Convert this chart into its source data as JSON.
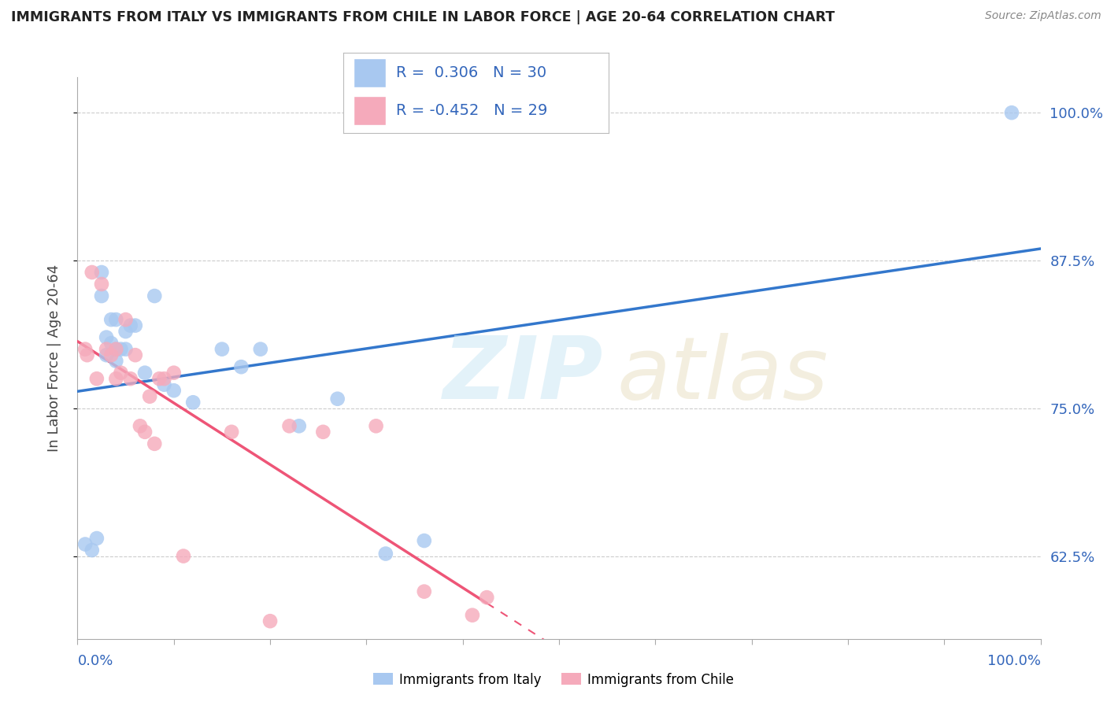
{
  "title": "IMMIGRANTS FROM ITALY VS IMMIGRANTS FROM CHILE IN LABOR FORCE | AGE 20-64 CORRELATION CHART",
  "source": "Source: ZipAtlas.com",
  "ylabel": "In Labor Force | Age 20-64",
  "ytick_values": [
    0.625,
    0.75,
    0.875,
    1.0
  ],
  "ytick_labels": [
    "62.5%",
    "75.0%",
    "87.5%",
    "100.0%"
  ],
  "xlim": [
    0.0,
    1.0
  ],
  "ylim": [
    0.555,
    1.03
  ],
  "italy_color": "#a8c8f0",
  "chile_color": "#f5aabb",
  "italy_line_color": "#3377cc",
  "chile_line_color": "#ee5577",
  "legend_text_color": "#3366bb",
  "legend_R_italy": "0.306",
  "legend_N_italy": "30",
  "legend_R_chile": "-0.452",
  "legend_N_chile": "29",
  "xtick_positions": [
    0.0,
    0.1,
    0.2,
    0.3,
    0.4,
    0.5,
    0.6,
    0.7,
    0.8,
    0.9,
    1.0
  ],
  "italy_x": [
    0.008,
    0.015,
    0.02,
    0.025,
    0.025,
    0.03,
    0.03,
    0.035,
    0.035,
    0.04,
    0.04,
    0.04,
    0.045,
    0.05,
    0.05,
    0.055,
    0.06,
    0.07,
    0.08,
    0.09,
    0.1,
    0.12,
    0.15,
    0.17,
    0.19,
    0.23,
    0.27,
    0.32,
    0.36,
    0.97
  ],
  "italy_y": [
    0.635,
    0.63,
    0.64,
    0.845,
    0.865,
    0.795,
    0.81,
    0.805,
    0.825,
    0.79,
    0.8,
    0.825,
    0.8,
    0.815,
    0.8,
    0.82,
    0.82,
    0.78,
    0.845,
    0.77,
    0.765,
    0.755,
    0.8,
    0.785,
    0.8,
    0.735,
    0.758,
    0.627,
    0.638,
    1.0
  ],
  "chile_x": [
    0.008,
    0.01,
    0.015,
    0.02,
    0.025,
    0.03,
    0.035,
    0.04,
    0.04,
    0.045,
    0.05,
    0.055,
    0.06,
    0.065,
    0.07,
    0.075,
    0.08,
    0.085,
    0.09,
    0.1,
    0.11,
    0.16,
    0.2,
    0.22,
    0.255,
    0.31,
    0.36,
    0.41,
    0.425
  ],
  "chile_y": [
    0.8,
    0.795,
    0.865,
    0.775,
    0.855,
    0.8,
    0.795,
    0.8,
    0.775,
    0.78,
    0.825,
    0.775,
    0.795,
    0.735,
    0.73,
    0.76,
    0.72,
    0.775,
    0.775,
    0.78,
    0.625,
    0.73,
    0.57,
    0.735,
    0.73,
    0.735,
    0.595,
    0.575,
    0.59
  ],
  "chile_line_solid_xmax": 0.425,
  "italy_line_solid_xmax": 1.0
}
